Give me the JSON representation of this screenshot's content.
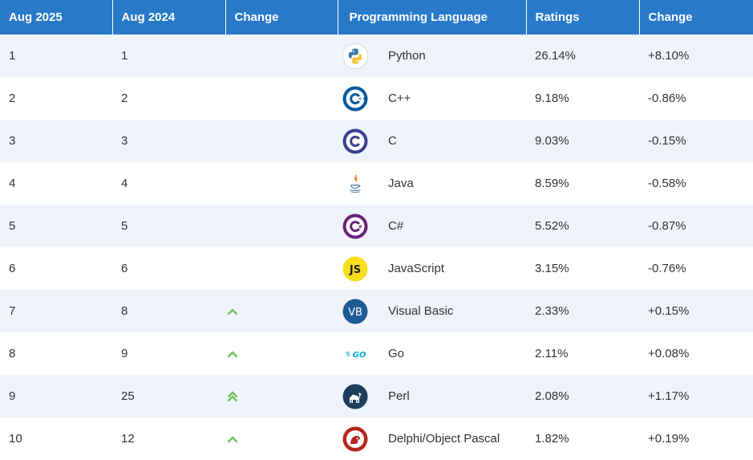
{
  "headers": [
    "Aug 2025",
    "Aug 2024",
    "Change",
    "Programming Language",
    "Ratings",
    "Change"
  ],
  "rows": [
    {
      "rank_2025": "1",
      "rank_2024": "1",
      "trend": "none",
      "icon": "python-icon",
      "language": "Python",
      "rating": "26.14%",
      "change": "+8.10%"
    },
    {
      "rank_2025": "2",
      "rank_2024": "2",
      "trend": "none",
      "icon": "cpp-icon",
      "language": "C++",
      "rating": "9.18%",
      "change": "-0.86%"
    },
    {
      "rank_2025": "3",
      "rank_2024": "3",
      "trend": "none",
      "icon": "c-icon",
      "language": "C",
      "rating": "9.03%",
      "change": "-0.15%"
    },
    {
      "rank_2025": "4",
      "rank_2024": "4",
      "trend": "none",
      "icon": "java-icon",
      "language": "Java",
      "rating": "8.59%",
      "change": "-0.58%"
    },
    {
      "rank_2025": "5",
      "rank_2024": "5",
      "trend": "none",
      "icon": "csharp-icon",
      "language": "C#",
      "rating": "5.52%",
      "change": "-0.87%"
    },
    {
      "rank_2025": "6",
      "rank_2024": "6",
      "trend": "none",
      "icon": "javascript-icon",
      "language": "JavaScript",
      "rating": "3.15%",
      "change": "-0.76%"
    },
    {
      "rank_2025": "7",
      "rank_2024": "8",
      "trend": "up",
      "icon": "visual-basic-icon",
      "language": "Visual Basic",
      "rating": "2.33%",
      "change": "+0.15%"
    },
    {
      "rank_2025": "8",
      "rank_2024": "9",
      "trend": "up",
      "icon": "go-icon",
      "language": "Go",
      "rating": "2.11%",
      "change": "+0.08%"
    },
    {
      "rank_2025": "9",
      "rank_2024": "25",
      "trend": "double-up",
      "icon": "perl-icon",
      "language": "Perl",
      "rating": "2.08%",
      "change": "+1.17%"
    },
    {
      "rank_2025": "10",
      "rank_2024": "12",
      "trend": "up",
      "icon": "delphi-icon",
      "language": "Delphi/Object Pascal",
      "rating": "1.82%",
      "change": "+0.19%"
    }
  ],
  "colors": {
    "header_bg": "#2879c8",
    "row_alt": "#eef4fa",
    "trend_up": "#6fbf5d"
  }
}
